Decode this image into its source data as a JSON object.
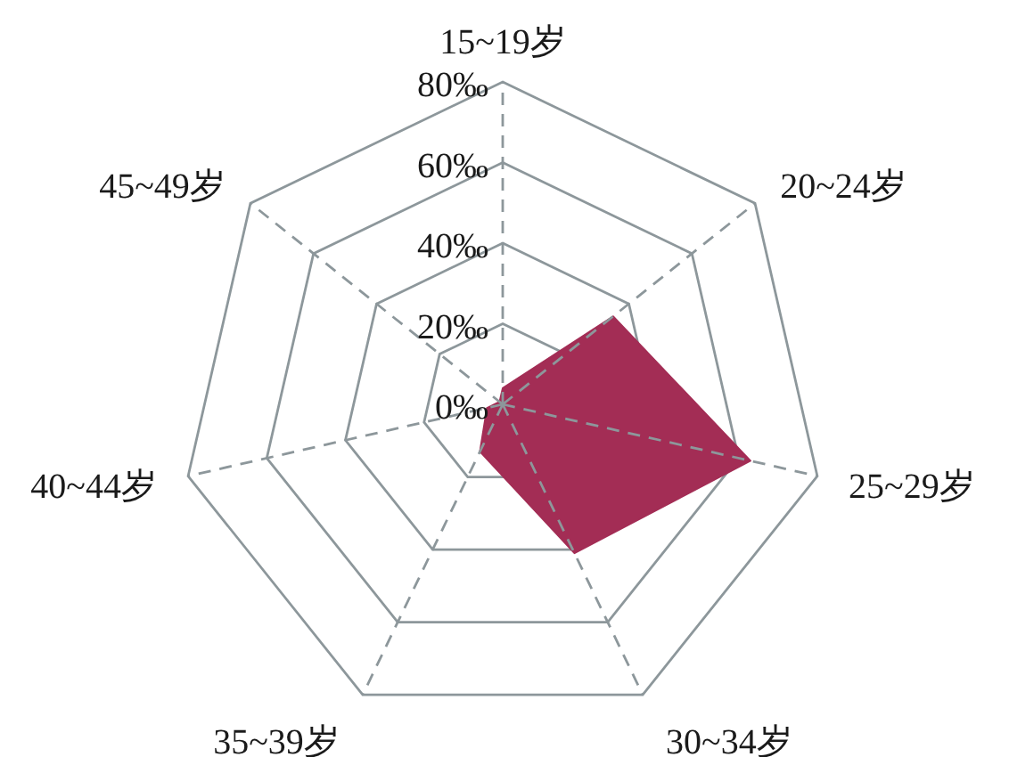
{
  "chart_data": {
    "type": "radar",
    "categories": [
      "15~19岁",
      "20~24岁",
      "25~29岁",
      "30~34岁",
      "35~39岁",
      "40~44岁",
      "45~49岁"
    ],
    "series": [
      {
        "color": "#a32d55",
        "values": [
          4,
          35,
          63,
          41,
          13,
          4,
          1
        ]
      }
    ],
    "ylim": [
      0,
      80
    ],
    "yticks": [
      {
        "value": 0,
        "label": "0‰"
      },
      {
        "value": 20,
        "label": "20‰"
      },
      {
        "value": 40,
        "label": "40‰"
      },
      {
        "value": 60,
        "label": "60‰"
      },
      {
        "value": 80,
        "label": "80‰"
      }
    ],
    "grid": true
  }
}
